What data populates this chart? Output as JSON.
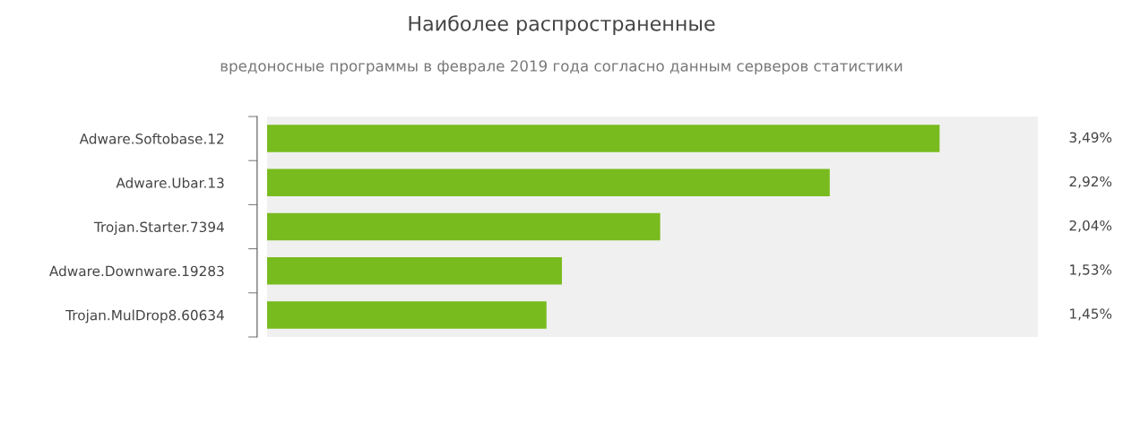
{
  "chart_data": {
    "type": "bar",
    "orientation": "horizontal",
    "title": "Наиболее распространенные",
    "subtitle": "вредоносные программы в феврале 2019 года согласно данным серверов статистики",
    "categories": [
      "Adware.Softobase.12",
      "Adware.Ubar.13",
      "Trojan.Starter.7394",
      "Adware.Downware.19283",
      "Trojan.MulDrop8.60634"
    ],
    "values": [
      3.49,
      2.92,
      2.04,
      1.53,
      1.45
    ],
    "value_labels": [
      "3,49%",
      "2,92%",
      "2,04%",
      "1,53%",
      "1,45%"
    ],
    "color": "#78bb1e",
    "xlim": [
      0,
      4
    ],
    "tick_labels": "y",
    "grid": false,
    "legend": false
  }
}
